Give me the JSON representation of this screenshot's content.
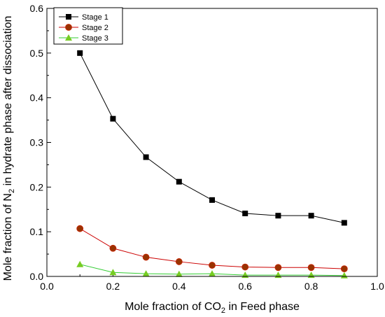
{
  "chart_data": {
    "type": "line",
    "title": "",
    "xlabel_parts": [
      "Mole fraction of CO",
      "2",
      " in Feed phase"
    ],
    "ylabel_parts": [
      "Mole fraction of N",
      "2",
      " in hydrate phase after dissociation"
    ],
    "xlim": [
      0.0,
      1.0
    ],
    "ylim": [
      0.0,
      0.6
    ],
    "x_ticks": [
      "0.0",
      "0.2",
      "0.4",
      "0.6",
      "0.8",
      "1.0"
    ],
    "y_ticks": [
      "0.0",
      "0.1",
      "0.2",
      "0.3",
      "0.4",
      "0.5",
      "0.6"
    ],
    "x": [
      0.1,
      0.2,
      0.3,
      0.4,
      0.5,
      0.6,
      0.7,
      0.8,
      0.9
    ],
    "legend_position": "top-left",
    "grid": false,
    "series": [
      {
        "name": "Stage 1",
        "marker": "square",
        "color": "#000000",
        "marker_color": "#000000",
        "values": [
          0.5,
          0.353,
          0.267,
          0.212,
          0.171,
          0.141,
          0.136,
          0.136,
          0.12
        ]
      },
      {
        "name": "Stage 2",
        "marker": "circle",
        "color": "#cc0000",
        "marker_color": "#993300",
        "values": [
          0.107,
          0.063,
          0.043,
          0.033,
          0.025,
          0.021,
          0.02,
          0.02,
          0.017
        ]
      },
      {
        "name": "Stage 3",
        "marker": "triangle",
        "color": "#33cc33",
        "marker_color": "#77cc22",
        "values": [
          0.027,
          0.009,
          0.006,
          0.005,
          0.006,
          0.003,
          0.003,
          0.003,
          0.002
        ]
      }
    ]
  }
}
